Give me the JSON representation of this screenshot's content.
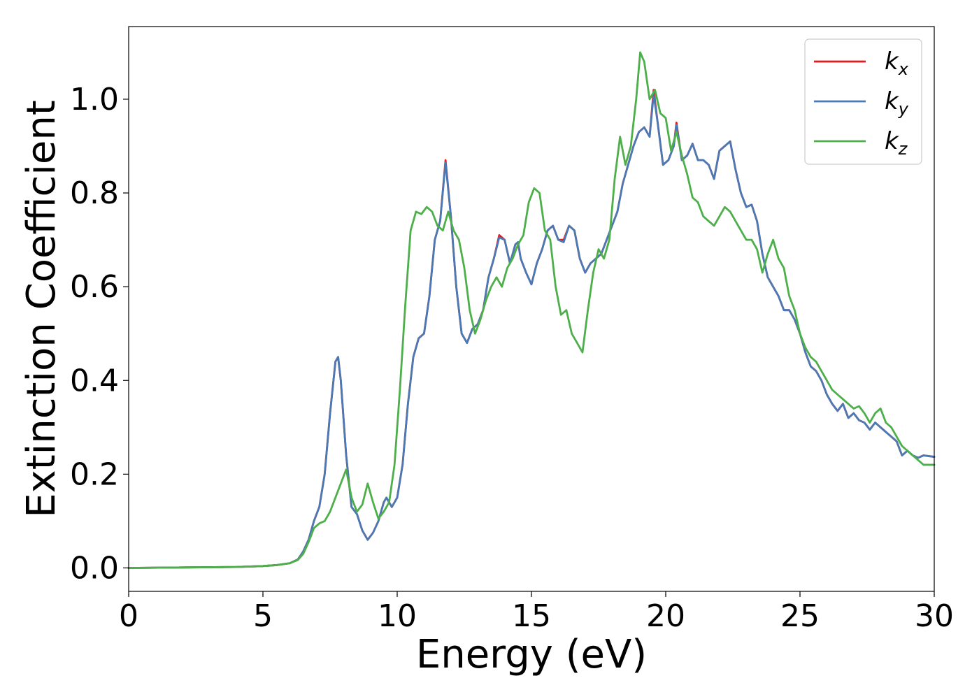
{
  "chart_data": {
    "type": "line",
    "title": "",
    "xlabel": "Energy (eV)",
    "ylabel": "Extinction Coefficient",
    "xlim": [
      0,
      30
    ],
    "ylim": [
      -0.05,
      1.155
    ],
    "xticks": [
      0,
      5,
      10,
      15,
      20,
      25,
      30
    ],
    "xtick_labels": [
      "0",
      "5",
      "10",
      "15",
      "20",
      "25",
      "30"
    ],
    "yticks": [
      0.0,
      0.2,
      0.4,
      0.6,
      0.8,
      1.0
    ],
    "ytick_labels": [
      "0.0",
      "0.2",
      "0.4",
      "0.6",
      "0.8",
      "1.0"
    ],
    "grid": false,
    "legend_position": "top-right",
    "series": [
      {
        "name": "k_x",
        "label_base": "k",
        "label_sub": "x",
        "color": "#e41a1c",
        "x": [
          0,
          2,
          4,
          5,
          5.5,
          6,
          6.3,
          6.5,
          6.7,
          6.9,
          7.1,
          7.3,
          7.5,
          7.7,
          7.8,
          7.9,
          8.1,
          8.3,
          8.5,
          8.7,
          8.9,
          9.1,
          9.3,
          9.5,
          9.6,
          9.8,
          10.0,
          10.2,
          10.4,
          10.6,
          10.8,
          11.0,
          11.2,
          11.4,
          11.6,
          11.8,
          12.0,
          12.2,
          12.4,
          12.6,
          12.8,
          13.0,
          13.2,
          13.4,
          13.6,
          13.8,
          14.0,
          14.2,
          14.4,
          14.5,
          14.6,
          14.8,
          15.0,
          15.2,
          15.4,
          15.6,
          15.8,
          16.0,
          16.2,
          16.4,
          16.6,
          16.8,
          17.0,
          17.2,
          17.4,
          17.6,
          17.8,
          18.0,
          18.2,
          18.4,
          18.6,
          18.8,
          19.0,
          19.2,
          19.4,
          19.55,
          19.7,
          19.9,
          20.1,
          20.3,
          20.4,
          20.6,
          20.8,
          21.0,
          21.2,
          21.4,
          21.6,
          21.8,
          22.0,
          22.2,
          22.4,
          22.6,
          22.8,
          23.0,
          23.2,
          23.4,
          23.6,
          23.8,
          24.0,
          24.2,
          24.4,
          24.6,
          24.8,
          25.0,
          25.2,
          25.4,
          25.6,
          25.8,
          26.0,
          26.2,
          26.4,
          26.6,
          26.8,
          27.0,
          27.2,
          27.4,
          27.6,
          27.8,
          28.0,
          28.2,
          28.4,
          28.6,
          28.8,
          29.0,
          29.2,
          29.4,
          29.6,
          30.0
        ],
        "y": [
          0.0,
          0.001,
          0.002,
          0.004,
          0.006,
          0.01,
          0.018,
          0.035,
          0.06,
          0.1,
          0.13,
          0.2,
          0.33,
          0.44,
          0.45,
          0.4,
          0.24,
          0.13,
          0.115,
          0.08,
          0.06,
          0.075,
          0.1,
          0.14,
          0.15,
          0.13,
          0.15,
          0.22,
          0.35,
          0.45,
          0.49,
          0.5,
          0.58,
          0.7,
          0.74,
          0.87,
          0.75,
          0.6,
          0.5,
          0.48,
          0.51,
          0.52,
          0.55,
          0.62,
          0.66,
          0.71,
          0.7,
          0.65,
          0.69,
          0.695,
          0.66,
          0.63,
          0.605,
          0.65,
          0.68,
          0.72,
          0.73,
          0.7,
          0.7,
          0.73,
          0.72,
          0.66,
          0.63,
          0.65,
          0.66,
          0.67,
          0.7,
          0.73,
          0.76,
          0.82,
          0.86,
          0.9,
          0.93,
          0.94,
          0.92,
          1.02,
          0.95,
          0.86,
          0.87,
          0.9,
          0.95,
          0.87,
          0.88,
          0.905,
          0.87,
          0.87,
          0.86,
          0.83,
          0.89,
          0.9,
          0.91,
          0.85,
          0.8,
          0.77,
          0.775,
          0.74,
          0.67,
          0.62,
          0.6,
          0.58,
          0.55,
          0.55,
          0.53,
          0.5,
          0.46,
          0.43,
          0.42,
          0.4,
          0.37,
          0.35,
          0.335,
          0.35,
          0.32,
          0.33,
          0.315,
          0.31,
          0.295,
          0.31,
          0.3,
          0.29,
          0.28,
          0.27,
          0.24,
          0.25,
          0.24,
          0.235,
          0.24,
          0.237
        ]
      },
      {
        "name": "k_y",
        "label_base": "k",
        "label_sub": "y",
        "color": "#4a7ab5",
        "x": [
          0,
          2,
          4,
          5,
          5.5,
          6,
          6.3,
          6.5,
          6.7,
          6.9,
          7.1,
          7.3,
          7.5,
          7.7,
          7.8,
          7.9,
          8.1,
          8.3,
          8.5,
          8.7,
          8.9,
          9.1,
          9.3,
          9.5,
          9.6,
          9.8,
          10.0,
          10.2,
          10.4,
          10.6,
          10.8,
          11.0,
          11.2,
          11.4,
          11.6,
          11.8,
          12.0,
          12.2,
          12.4,
          12.6,
          12.8,
          13.0,
          13.2,
          13.4,
          13.6,
          13.8,
          14.0,
          14.2,
          14.4,
          14.5,
          14.6,
          14.8,
          15.0,
          15.2,
          15.4,
          15.6,
          15.8,
          16.0,
          16.2,
          16.4,
          16.6,
          16.8,
          17.0,
          17.2,
          17.4,
          17.6,
          17.8,
          18.0,
          18.2,
          18.4,
          18.6,
          18.8,
          19.0,
          19.2,
          19.4,
          19.55,
          19.7,
          19.9,
          20.1,
          20.3,
          20.4,
          20.6,
          20.8,
          21.0,
          21.2,
          21.4,
          21.6,
          21.8,
          22.0,
          22.2,
          22.4,
          22.6,
          22.8,
          23.0,
          23.2,
          23.4,
          23.6,
          23.8,
          24.0,
          24.2,
          24.4,
          24.6,
          24.8,
          25.0,
          25.2,
          25.4,
          25.6,
          25.8,
          26.0,
          26.2,
          26.4,
          26.6,
          26.8,
          27.0,
          27.2,
          27.4,
          27.6,
          27.8,
          28.0,
          28.2,
          28.4,
          28.6,
          28.8,
          29.0,
          29.2,
          29.4,
          29.6,
          30.0
        ],
        "y": [
          0.0,
          0.001,
          0.002,
          0.004,
          0.006,
          0.01,
          0.018,
          0.035,
          0.06,
          0.1,
          0.13,
          0.2,
          0.33,
          0.44,
          0.45,
          0.4,
          0.24,
          0.13,
          0.115,
          0.08,
          0.06,
          0.075,
          0.1,
          0.14,
          0.15,
          0.13,
          0.15,
          0.22,
          0.35,
          0.45,
          0.49,
          0.5,
          0.58,
          0.7,
          0.74,
          0.865,
          0.75,
          0.6,
          0.5,
          0.48,
          0.51,
          0.52,
          0.55,
          0.62,
          0.66,
          0.705,
          0.7,
          0.65,
          0.69,
          0.695,
          0.66,
          0.63,
          0.605,
          0.65,
          0.68,
          0.72,
          0.73,
          0.7,
          0.695,
          0.73,
          0.72,
          0.66,
          0.63,
          0.65,
          0.66,
          0.67,
          0.7,
          0.73,
          0.76,
          0.82,
          0.86,
          0.9,
          0.93,
          0.94,
          0.92,
          1.01,
          0.95,
          0.86,
          0.87,
          0.9,
          0.945,
          0.87,
          0.88,
          0.905,
          0.87,
          0.87,
          0.86,
          0.83,
          0.89,
          0.9,
          0.91,
          0.85,
          0.8,
          0.77,
          0.775,
          0.74,
          0.67,
          0.62,
          0.6,
          0.58,
          0.55,
          0.55,
          0.53,
          0.5,
          0.46,
          0.43,
          0.42,
          0.4,
          0.37,
          0.35,
          0.335,
          0.35,
          0.32,
          0.33,
          0.315,
          0.31,
          0.295,
          0.31,
          0.3,
          0.29,
          0.28,
          0.27,
          0.24,
          0.25,
          0.24,
          0.235,
          0.24,
          0.237
        ]
      },
      {
        "name": "k_z",
        "label_base": "k",
        "label_sub": "z",
        "color": "#4daf4a",
        "x": [
          0,
          2,
          4,
          5,
          5.5,
          6,
          6.3,
          6.5,
          6.7,
          6.9,
          7.1,
          7.3,
          7.5,
          7.7,
          7.9,
          8.1,
          8.3,
          8.5,
          8.7,
          8.9,
          9.1,
          9.3,
          9.5,
          9.7,
          9.9,
          10.1,
          10.3,
          10.5,
          10.7,
          10.9,
          11.1,
          11.3,
          11.5,
          11.7,
          11.9,
          12.1,
          12.3,
          12.5,
          12.7,
          12.9,
          13.1,
          13.3,
          13.5,
          13.7,
          13.9,
          14.1,
          14.3,
          14.5,
          14.7,
          14.9,
          15.1,
          15.3,
          15.5,
          15.7,
          15.9,
          16.1,
          16.3,
          16.5,
          16.7,
          16.9,
          17.1,
          17.3,
          17.5,
          17.7,
          17.9,
          18.1,
          18.3,
          18.5,
          18.7,
          18.9,
          19.05,
          19.2,
          19.4,
          19.6,
          19.8,
          20.0,
          20.2,
          20.4,
          20.6,
          20.8,
          21.0,
          21.2,
          21.4,
          21.6,
          21.8,
          22.0,
          22.2,
          22.4,
          22.6,
          22.8,
          23.0,
          23.2,
          23.4,
          23.6,
          23.8,
          24.0,
          24.2,
          24.4,
          24.6,
          24.8,
          25.0,
          25.2,
          25.4,
          25.6,
          25.8,
          26.0,
          26.2,
          26.4,
          26.6,
          26.8,
          27.0,
          27.2,
          27.4,
          27.6,
          27.8,
          28.0,
          28.2,
          28.4,
          28.6,
          28.8,
          29.0,
          29.2,
          29.4,
          29.6,
          30.0
        ],
        "y": [
          0.0,
          0.001,
          0.002,
          0.004,
          0.006,
          0.01,
          0.017,
          0.03,
          0.055,
          0.085,
          0.095,
          0.1,
          0.12,
          0.15,
          0.18,
          0.21,
          0.15,
          0.12,
          0.135,
          0.18,
          0.14,
          0.105,
          0.12,
          0.14,
          0.22,
          0.38,
          0.56,
          0.72,
          0.76,
          0.755,
          0.77,
          0.76,
          0.73,
          0.72,
          0.76,
          0.72,
          0.7,
          0.64,
          0.55,
          0.5,
          0.53,
          0.57,
          0.6,
          0.62,
          0.6,
          0.64,
          0.66,
          0.69,
          0.71,
          0.78,
          0.81,
          0.8,
          0.72,
          0.7,
          0.6,
          0.54,
          0.55,
          0.5,
          0.48,
          0.46,
          0.55,
          0.63,
          0.68,
          0.66,
          0.7,
          0.83,
          0.92,
          0.86,
          0.9,
          1.0,
          1.1,
          1.08,
          1.0,
          1.02,
          0.97,
          0.96,
          0.89,
          0.93,
          0.88,
          0.84,
          0.79,
          0.78,
          0.75,
          0.74,
          0.73,
          0.75,
          0.77,
          0.76,
          0.74,
          0.72,
          0.7,
          0.7,
          0.68,
          0.63,
          0.67,
          0.7,
          0.66,
          0.64,
          0.58,
          0.55,
          0.5,
          0.47,
          0.45,
          0.44,
          0.42,
          0.4,
          0.38,
          0.37,
          0.36,
          0.35,
          0.34,
          0.345,
          0.33,
          0.31,
          0.33,
          0.34,
          0.31,
          0.3,
          0.28,
          0.26,
          0.25,
          0.24,
          0.23,
          0.22,
          0.22
        ]
      }
    ]
  }
}
